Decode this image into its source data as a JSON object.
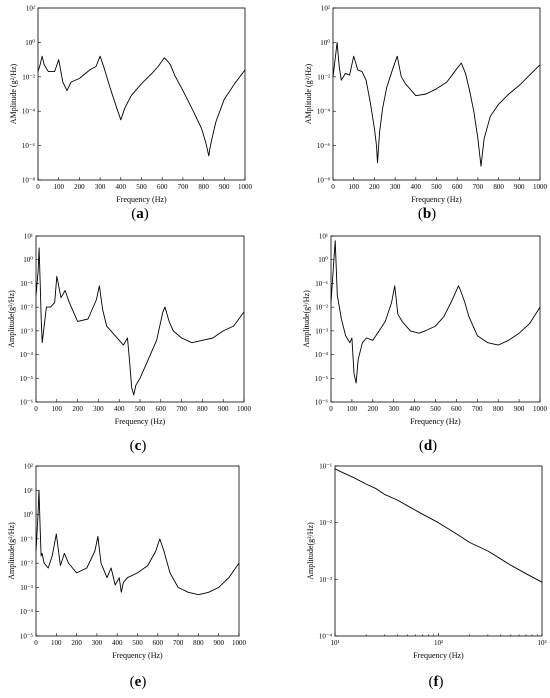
{
  "chart_data": [
    {
      "id": "a",
      "panel_label": "a",
      "type": "line",
      "yscale": "log",
      "xlabel": "Frequency  (Hz)",
      "ylabel": "AMplitude (g²/Hz)",
      "xlim": [
        0,
        1000
      ],
      "ylim_exp": [
        -8,
        2
      ],
      "xticks": [
        "0",
        "100",
        "200",
        "300",
        "400",
        "500",
        "600",
        "700",
        "800",
        "900",
        "1000"
      ],
      "yticks": [
        "10⁻⁸",
        "10⁻⁶",
        "10⁻⁴",
        "10⁻²",
        "10⁰",
        "10²"
      ],
      "series": [
        {
          "x": [
            0,
            10,
            20,
            30,
            50,
            80,
            100,
            120,
            140,
            160,
            200,
            250,
            280,
            300,
            320,
            350,
            380,
            400,
            420,
            450,
            500,
            550,
            580,
            610,
            620,
            640,
            660,
            700,
            750,
            790,
            810,
            825,
            830,
            840,
            860,
            900,
            950,
            1000
          ],
          "y": [
            -1.7,
            -1.3,
            -0.8,
            -1.3,
            -1.7,
            -1.7,
            -1.0,
            -2.3,
            -2.8,
            -2.3,
            -2.1,
            -1.6,
            -1.4,
            -0.8,
            -1.5,
            -2.7,
            -3.8,
            -4.5,
            -3.8,
            -3.1,
            -2.4,
            -1.8,
            -1.4,
            -0.9,
            -1.0,
            -1.3,
            -1.9,
            -2.8,
            -4.0,
            -5.0,
            -5.8,
            -6.6,
            -6.2,
            -5.6,
            -4.6,
            -3.3,
            -2.4,
            -1.6
          ]
        }
      ]
    },
    {
      "id": "b",
      "panel_label": "b",
      "type": "line",
      "yscale": "log",
      "xlabel": "Frequency  (Hz)",
      "ylabel": "AMplitude (g²/Hz)",
      "xlim": [
        0,
        1000
      ],
      "ylim_exp": [
        -8,
        2
      ],
      "xticks": [
        "0",
        "100",
        "200",
        "300",
        "400",
        "500",
        "600",
        "700",
        "800",
        "900",
        "1000"
      ],
      "yticks": [
        "10⁻⁸",
        "10⁻⁶",
        "10⁻⁴",
        "10⁻²",
        "10⁰",
        "10²"
      ],
      "series": [
        {
          "x": [
            0,
            10,
            20,
            30,
            40,
            60,
            80,
            100,
            120,
            140,
            160,
            180,
            200,
            210,
            215,
            225,
            240,
            260,
            290,
            310,
            330,
            350,
            400,
            450,
            500,
            550,
            600,
            620,
            640,
            660,
            680,
            700,
            715,
            730,
            760,
            800,
            850,
            900,
            950,
            1000
          ],
          "y": [
            -2.0,
            -1.0,
            0.0,
            -1.4,
            -2.2,
            -1.8,
            -1.9,
            -0.8,
            -1.6,
            -1.7,
            -2.2,
            -3.5,
            -5.0,
            -6.0,
            -7.0,
            -5.2,
            -3.8,
            -2.6,
            -1.5,
            -0.8,
            -2.0,
            -2.4,
            -3.1,
            -3.0,
            -2.7,
            -2.3,
            -1.5,
            -1.2,
            -1.8,
            -2.8,
            -4.0,
            -5.6,
            -7.2,
            -5.6,
            -4.3,
            -3.6,
            -3.0,
            -2.5,
            -1.9,
            -1.3
          ]
        }
      ]
    },
    {
      "id": "c",
      "panel_label": "c",
      "type": "line",
      "yscale": "log",
      "xlabel": "Frequency  (Hz)",
      "ylabel": "Amplitude(g²/Hz)",
      "xlim": [
        0,
        1000
      ],
      "ylim_exp": [
        -6,
        1
      ],
      "xticks": [
        "0",
        "100",
        "200",
        "300",
        "400",
        "500",
        "600",
        "700",
        "800",
        "900",
        "1000"
      ],
      "yticks": [
        "10⁻⁶",
        "10⁻⁵",
        "10⁻⁴",
        "10⁻³",
        "10⁻²",
        "10⁻¹",
        "10⁰",
        "10¹"
      ],
      "series": [
        {
          "x": [
            0,
            10,
            15,
            20,
            25,
            30,
            50,
            70,
            90,
            100,
            120,
            140,
            160,
            200,
            250,
            290,
            305,
            320,
            340,
            380,
            420,
            440,
            450,
            460,
            470,
            480,
            500,
            550,
            580,
            610,
            620,
            640,
            660,
            700,
            750,
            800,
            850,
            900,
            950,
            1000
          ],
          "y": [
            -1.5,
            -0.5,
            0.5,
            -1.0,
            -2.5,
            -3.5,
            -2.0,
            -2.0,
            -1.8,
            -0.7,
            -1.6,
            -1.3,
            -1.8,
            -2.6,
            -2.5,
            -1.7,
            -1.1,
            -2.1,
            -2.8,
            -3.2,
            -3.6,
            -3.3,
            -4.3,
            -5.4,
            -5.7,
            -5.3,
            -5.0,
            -4.0,
            -3.4,
            -2.2,
            -2.0,
            -2.6,
            -3.0,
            -3.3,
            -3.5,
            -3.4,
            -3.3,
            -3.0,
            -2.8,
            -2.2
          ]
        }
      ]
    },
    {
      "id": "d",
      "panel_label": "d",
      "type": "line",
      "yscale": "log",
      "xlabel": "Frequency  (Hz)",
      "ylabel": "Amplitude(g²/Hz)",
      "xlim": [
        0,
        1000
      ],
      "ylim_exp": [
        -6,
        1
      ],
      "xticks": [
        "0",
        "100",
        "200",
        "300",
        "400",
        "500",
        "600",
        "700",
        "800",
        "900",
        "1000"
      ],
      "yticks": [
        "10⁻⁶",
        "10⁻⁵",
        "10⁻⁴",
        "10⁻³",
        "10⁻²",
        "10⁻¹",
        "10⁰",
        "10¹"
      ],
      "series": [
        {
          "x": [
            0,
            10,
            20,
            30,
            50,
            70,
            90,
            100,
            110,
            120,
            130,
            150,
            170,
            200,
            230,
            260,
            290,
            305,
            320,
            340,
            380,
            420,
            450,
            500,
            540,
            580,
            610,
            620,
            640,
            660,
            700,
            750,
            800,
            850,
            900,
            950,
            1000
          ],
          "y": [
            -1.8,
            -0.5,
            0.8,
            -1.5,
            -2.5,
            -3.2,
            -3.5,
            -3.3,
            -4.8,
            -5.2,
            -4.2,
            -3.5,
            -3.3,
            -3.4,
            -3.0,
            -2.6,
            -1.8,
            -1.1,
            -2.3,
            -2.6,
            -3.0,
            -3.1,
            -3.0,
            -2.8,
            -2.4,
            -1.7,
            -1.1,
            -1.3,
            -1.8,
            -2.4,
            -3.2,
            -3.5,
            -3.6,
            -3.4,
            -3.1,
            -2.7,
            -2.0
          ]
        }
      ]
    },
    {
      "id": "e",
      "panel_label": "e",
      "type": "line",
      "yscale": "log",
      "xlabel": "Frequency  (Hz)",
      "ylabel": "Amplitude(g²/Hz)",
      "xlim": [
        0,
        1000
      ],
      "ylim_exp": [
        -5,
        2
      ],
      "xticks": [
        "0",
        "100",
        "200",
        "300",
        "400",
        "500",
        "600",
        "700",
        "800",
        "900",
        "1000"
      ],
      "yticks": [
        "10⁻⁵",
        "10⁻⁴",
        "10⁻³",
        "10⁻²",
        "10⁻¹",
        "10⁰",
        "10¹",
        "10²"
      ],
      "series": [
        {
          "x": [
            0,
            10,
            15,
            20,
            25,
            30,
            40,
            60,
            80,
            100,
            120,
            140,
            160,
            200,
            250,
            290,
            305,
            320,
            350,
            370,
            390,
            410,
            420,
            430,
            450,
            500,
            550,
            590,
            610,
            630,
            660,
            700,
            750,
            800,
            850,
            900,
            950,
            1000
          ],
          "y": [
            -1.5,
            0.0,
            1.0,
            -0.5,
            -1.7,
            -1.6,
            -2.0,
            -2.2,
            -1.7,
            -0.8,
            -2.1,
            -1.6,
            -2.0,
            -2.4,
            -2.2,
            -1.5,
            -0.9,
            -2.0,
            -2.6,
            -2.2,
            -2.9,
            -2.6,
            -3.2,
            -2.8,
            -2.6,
            -2.4,
            -2.1,
            -1.5,
            -1.0,
            -1.5,
            -2.4,
            -3.0,
            -3.2,
            -3.3,
            -3.2,
            -3.0,
            -2.6,
            -2.0
          ]
        }
      ]
    },
    {
      "id": "f",
      "panel_label": "f",
      "type": "line",
      "xscale": "log",
      "yscale": "log",
      "xlabel": "Frequency  (Hz)",
      "ylabel": "Amplitude(g²/Hz)",
      "xlim_exp": [
        1,
        3
      ],
      "ylim_exp": [
        -4,
        -1
      ],
      "xticks": [
        "10¹",
        "10²",
        "10³"
      ],
      "yticks": [
        "10⁻⁴",
        "10⁻³",
        "10⁻²",
        "10⁻¹"
      ],
      "series": [
        {
          "x": [
            10,
            12,
            15,
            20,
            25,
            30,
            40,
            50,
            70,
            100,
            150,
            200,
            300,
            500,
            700,
            1000
          ],
          "y": [
            -1.05,
            -1.12,
            -1.2,
            -1.32,
            -1.4,
            -1.5,
            -1.6,
            -1.7,
            -1.85,
            -2.0,
            -2.2,
            -2.35,
            -2.5,
            -2.75,
            -2.9,
            -3.05
          ]
        }
      ]
    }
  ]
}
